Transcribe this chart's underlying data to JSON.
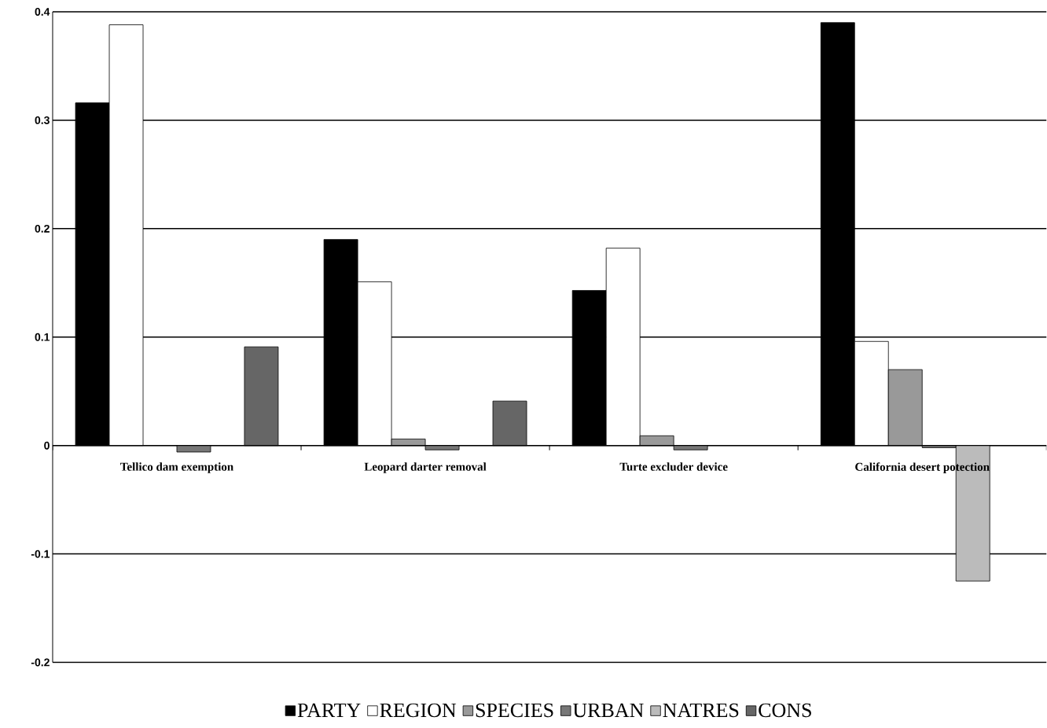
{
  "chart_data": {
    "type": "bar",
    "categories": [
      "Tellico dam exemption",
      "Leopard darter removal",
      "Turte excluder device",
      "California desert potection"
    ],
    "series": [
      {
        "name": "PARTY",
        "color": "#000000",
        "values": [
          0.316,
          0.19,
          0.143,
          0.39
        ]
      },
      {
        "name": "REGION",
        "color": "#ffffff",
        "values": [
          0.388,
          0.151,
          0.182,
          0.096
        ]
      },
      {
        "name": "SPECIES",
        "color": "#999999",
        "values": [
          null,
          0.006,
          0.009,
          0.07
        ]
      },
      {
        "name": "URBAN",
        "color": "#777777",
        "values": [
          -0.006,
          -0.004,
          -0.004,
          -0.002
        ]
      },
      {
        "name": "NATRES",
        "color": "#bbbbbb",
        "values": [
          null,
          null,
          null,
          -0.125
        ]
      },
      {
        "name": "CONS",
        "color": "#666666",
        "values": [
          0.091,
          0.041,
          null,
          null
        ]
      }
    ],
    "ylim": [
      -0.2,
      0.4
    ],
    "yticks": [
      -0.2,
      -0.1,
      0,
      0.1,
      0.2,
      0.3,
      0.4
    ],
    "grid": "y",
    "legend": "bottom"
  }
}
